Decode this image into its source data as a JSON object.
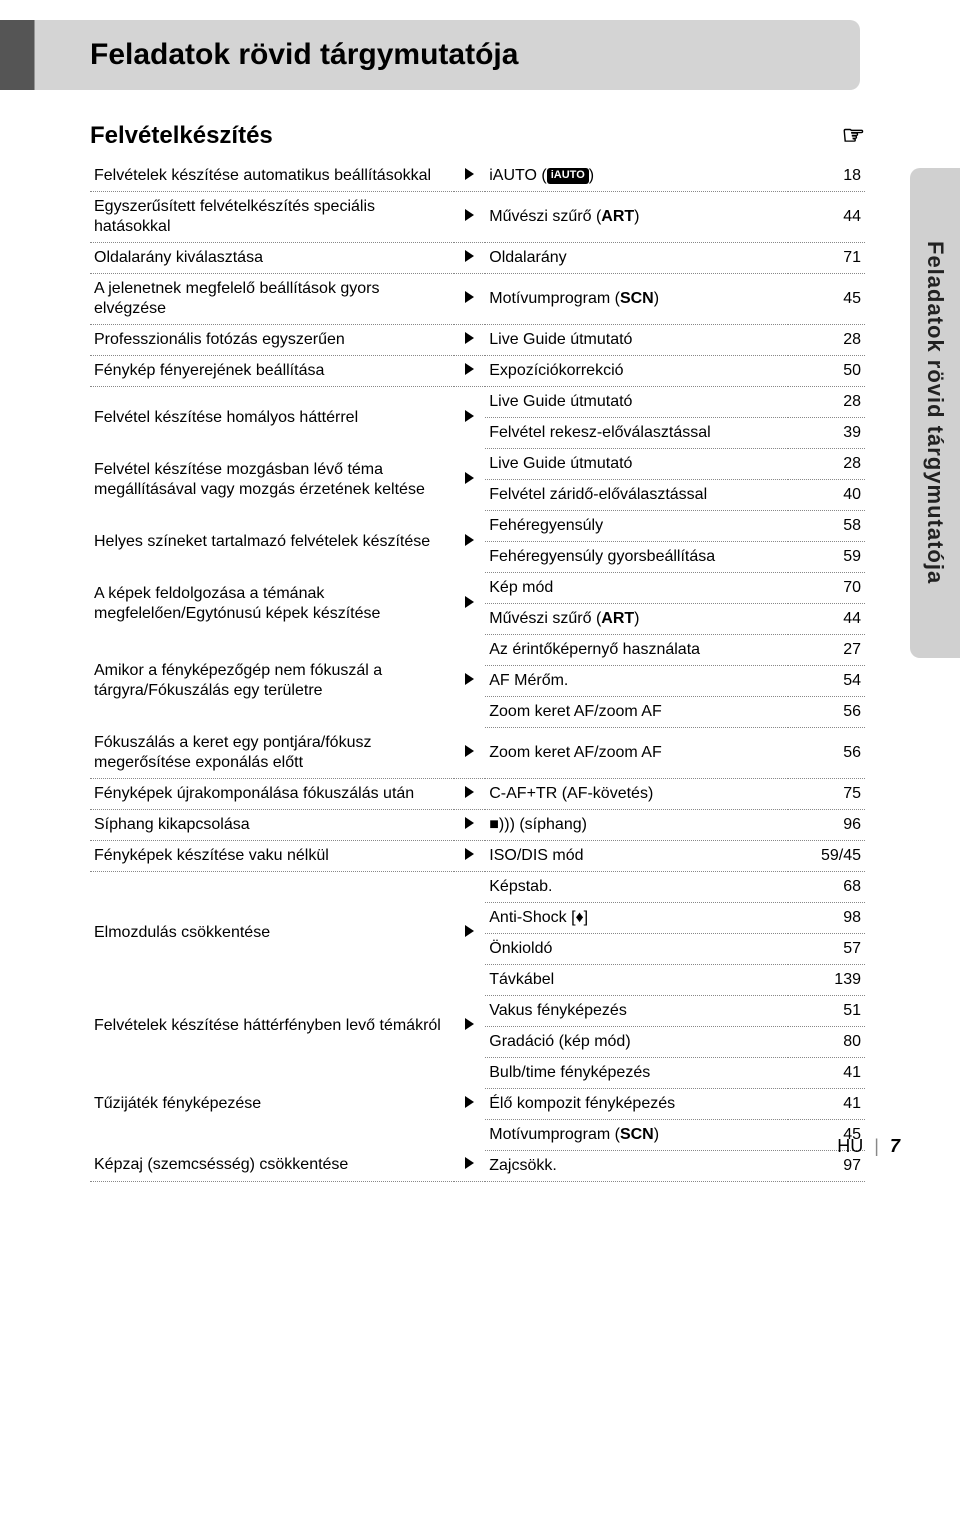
{
  "header": {
    "title": "Feladatok rövid tárgymutatója"
  },
  "sidebar": {
    "label": "Feladatok rövid tárgymutatója"
  },
  "section": {
    "title": "Felvételkészítés"
  },
  "footer": {
    "lang": "HU",
    "page": "7"
  },
  "styles": {
    "header_bg": "#d4d4d4",
    "header_accent": "#555555",
    "sidebar_bg": "#d0d0d0",
    "dot_color": "#888888",
    "triangle_color": "#000000",
    "font_family": "Arial, Helvetica, sans-serif",
    "title_fontsize_pt": 22,
    "section_fontsize_pt": 18,
    "body_fontsize_pt": 12
  },
  "rows": [
    {
      "task": "Felvételek készítése automatikus beállításokkal",
      "refs": [
        {
          "label_parts": [
            "iAUTO (",
            {
              "badge": "iAUTO"
            },
            ")"
          ],
          "page": "18"
        }
      ]
    },
    {
      "task": "Egyszerűsített felvételkészítés speciális hatásokkal",
      "refs": [
        {
          "label_parts": [
            "Művészi szűrő (",
            {
              "bold": "ART"
            },
            ")"
          ],
          "page": "44"
        }
      ]
    },
    {
      "task": "Oldalarány kiválasztása",
      "refs": [
        {
          "label": "Oldalarány",
          "page": "71"
        }
      ]
    },
    {
      "task": "A jelenetnek megfelelő beállítások gyors elvégzése",
      "refs": [
        {
          "label_parts": [
            "Motívumprogram (",
            {
              "bold": "SCN"
            },
            ")"
          ],
          "page": "45"
        }
      ]
    },
    {
      "task": "Professzionális fotózás egyszerűen",
      "refs": [
        {
          "label": "Live Guide útmutató",
          "page": "28"
        }
      ]
    },
    {
      "task": "Fénykép fényerejének beállítása",
      "refs": [
        {
          "label": "Expozíciókorrekció",
          "page": "50"
        }
      ],
      "topline": true
    },
    {
      "task": "Felvétel készítése homályos háttérrel",
      "refs": [
        {
          "label": "Live Guide útmutató",
          "page": "28"
        },
        {
          "label": "Felvétel rekesz-előválasztással",
          "page": "39"
        }
      ]
    },
    {
      "task": "Felvétel készítése mozgásban lévő téma megállításával vagy mozgás érzetének keltése",
      "refs": [
        {
          "label": "Live Guide útmutató",
          "page": "28"
        },
        {
          "label": "Felvétel záridő-előválasztással",
          "page": "40"
        }
      ]
    },
    {
      "task": "Helyes színeket tartalmazó felvételek készítése",
      "refs": [
        {
          "label": "Fehéregyensúly",
          "page": "58"
        },
        {
          "label": "Fehéregyensúly gyorsbeállítása",
          "page": "59"
        }
      ]
    },
    {
      "task": "A képek feldolgozása a témának megfelelően/Egytónusú képek készítése",
      "refs": [
        {
          "label": "Kép mód",
          "page": "70"
        },
        {
          "label_parts": [
            "Művészi szűrő (",
            {
              "bold": "ART"
            },
            ")"
          ],
          "page": "44"
        }
      ]
    },
    {
      "task": "Amikor a fényképezőgép nem fókuszál a tárgyra/Fókuszálás egy területre",
      "refs": [
        {
          "label": "Az érintőképernyő használata",
          "page": "27"
        },
        {
          "label": "AF Mérőm.",
          "page": "54"
        },
        {
          "label": "Zoom keret AF/zoom AF",
          "page": "56"
        }
      ]
    },
    {
      "task": "Fókuszálás a keret egy pontjára/fókusz megerősítése exponálás előtt",
      "refs": [
        {
          "label": "Zoom keret AF/zoom AF",
          "page": "56"
        }
      ]
    },
    {
      "task": "Fényképek újrakomponálása fókuszálás után",
      "refs": [
        {
          "label": "C-AF+TR (AF-követés)",
          "page": "75"
        }
      ]
    },
    {
      "task": "Síphang kikapcsolása",
      "refs": [
        {
          "label": "■))) (síphang)",
          "page": "96"
        }
      ]
    },
    {
      "task": "Fényképek készítése vaku nélkül",
      "refs": [
        {
          "label": "ISO/DIS mód",
          "page": "59/45"
        }
      ],
      "topline": true
    },
    {
      "task": "Elmozdulás csökkentése",
      "refs": [
        {
          "label": "Képstab.",
          "page": "68"
        },
        {
          "label": "Anti-Shock [♦]",
          "page": "98"
        },
        {
          "label": "Önkioldó",
          "page": "57"
        },
        {
          "label": "Távkábel",
          "page": "139"
        }
      ]
    },
    {
      "task": "Felvételek készítése háttérfényben levő témákról",
      "refs": [
        {
          "label": "Vakus fényképezés",
          "page": "51"
        },
        {
          "label": "Gradáció (kép mód)",
          "page": "80"
        }
      ]
    },
    {
      "task": "Tűzijáték fényképezése",
      "refs": [
        {
          "label": "Bulb/time fényképezés",
          "page": "41"
        },
        {
          "label": "Élő kompozit fényképezés",
          "page": "41"
        },
        {
          "label_parts": [
            "Motívumprogram (",
            {
              "bold": "SCN"
            },
            ")"
          ],
          "page": "45"
        }
      ]
    },
    {
      "task": "Képzaj (szemcsésség) csökkentése",
      "refs": [
        {
          "label": "Zajcsökk.",
          "page": "97"
        }
      ]
    }
  ]
}
